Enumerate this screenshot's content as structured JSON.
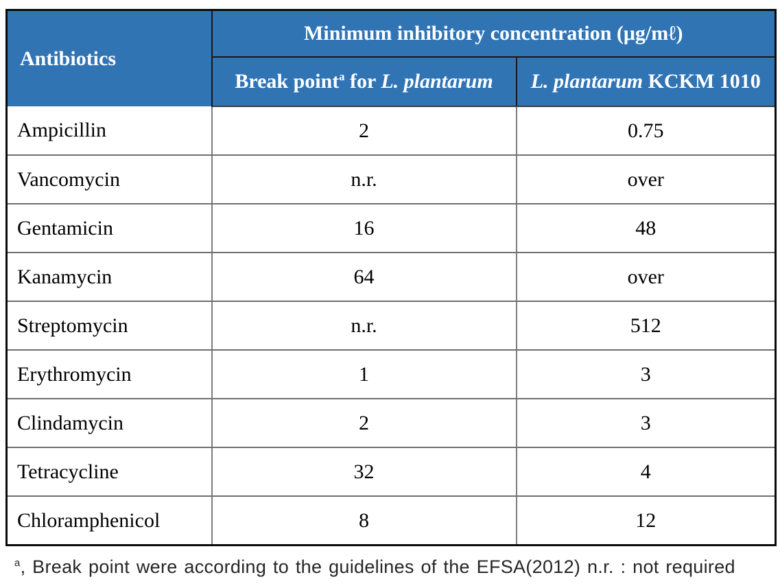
{
  "colors": {
    "header_bg": "#3174b4",
    "header_text": "#ffffff",
    "outer_border": "#0a0a0a",
    "grid_line": "#6f6f6f",
    "body_text": "#000000"
  },
  "table": {
    "header": {
      "antibiotics": "Antibiotics",
      "mic_title": "Minimum inhibitory concentration (μg/mℓ)",
      "break_point": {
        "prefix": "Break point",
        "sup": "a",
        "mid": " for ",
        "species": "L. plantarum"
      },
      "strain": {
        "species": "L. plantarum",
        "rest": " KCKM 1010"
      }
    },
    "rows": [
      {
        "antibiotic": "Ampicillin",
        "break_point": "2",
        "kckm_1010": "0.75"
      },
      {
        "antibiotic": "Vancomycin",
        "break_point": "n.r.",
        "kckm_1010": "over"
      },
      {
        "antibiotic": "Gentamicin",
        "break_point": "16",
        "kckm_1010": "48"
      },
      {
        "antibiotic": "Kanamycin",
        "break_point": "64",
        "kckm_1010": "over"
      },
      {
        "antibiotic": "Streptomycin",
        "break_point": "n.r.",
        "kckm_1010": "512"
      },
      {
        "antibiotic": "Erythromycin",
        "break_point": "1",
        "kckm_1010": "3"
      },
      {
        "antibiotic": "Clindamycin",
        "break_point": "2",
        "kckm_1010": "3"
      },
      {
        "antibiotic": "Tetracycline",
        "break_point": "32",
        "kckm_1010": "4"
      },
      {
        "antibiotic": "Chloramphenicol",
        "break_point": "8",
        "kckm_1010": "12"
      }
    ]
  },
  "footnote": {
    "sup": "a",
    "text": ", Break point were according to the guidelines of the EFSA(2012) n.r. : not required"
  }
}
